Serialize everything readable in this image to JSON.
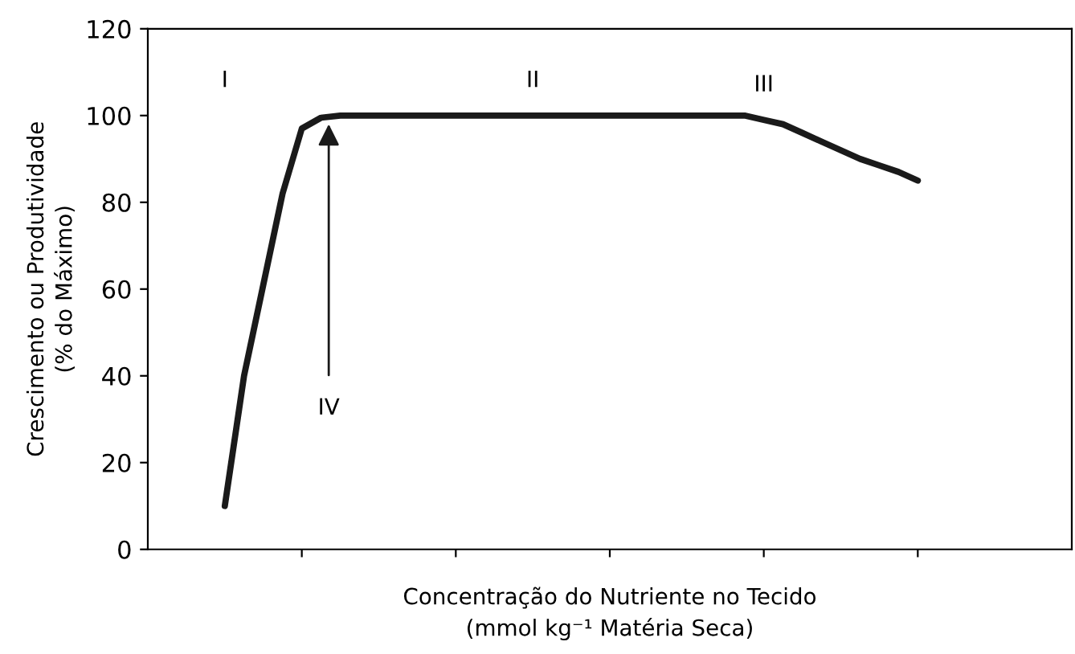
{
  "chart_data": {
    "type": "line",
    "xlabel": "Concentração do Nutriente no Tecido\n(mmol kg⁻¹ Matéria Seca)",
    "ylabel": "Crescimento ou Produtividade\n(% do Máximo)",
    "categories": [
      null,
      null,
      null,
      null,
      null,
      null,
      null,
      null,
      null,
      null,
      null,
      null,
      null,
      null,
      null,
      null,
      null,
      null,
      null,
      null,
      null,
      null,
      null,
      null,
      null,
      null,
      null,
      null,
      null,
      null,
      null,
      null,
      null,
      null,
      null,
      null,
      null
    ],
    "series": [
      {
        "color": "#1a1a1a",
        "values": [
          10,
          40,
          61,
          82,
          97,
          99.5,
          100,
          100,
          100,
          100,
          100,
          100,
          100,
          100,
          100,
          100,
          100,
          100,
          100,
          100,
          100,
          100,
          100,
          100,
          100,
          100,
          100,
          100,
          99,
          98,
          96,
          94,
          92,
          90,
          88.5,
          87,
          85
        ]
      }
    ],
    "ylim": [
      0,
      120
    ],
    "yticks": [
      0,
      20,
      40,
      60,
      80,
      100,
      120
    ],
    "grid": false,
    "legend": false,
    "marker": "none",
    "line_style": "solid",
    "annotations": [
      "I",
      "II",
      "III",
      {
        "text": "IV",
        "y": 98
      }
    ]
  }
}
